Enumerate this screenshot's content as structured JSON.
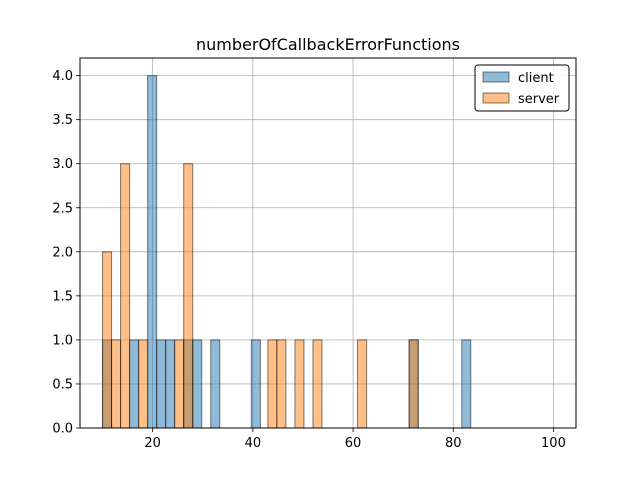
{
  "chart_data": {
    "type": "bar",
    "title": "numberOfCallbackErrorFunctions",
    "xlabel": "",
    "ylabel": "",
    "xlim": [
      5.5,
      104.5
    ],
    "ylim": [
      0,
      4.2
    ],
    "xticks": [
      20,
      40,
      60,
      80,
      100
    ],
    "yticks": [
      0.0,
      0.5,
      1.0,
      1.5,
      2.0,
      2.5,
      3.0,
      3.5,
      4.0
    ],
    "xtick_labels": [
      "20",
      "40",
      "60",
      "80",
      "100"
    ],
    "ytick_labels": [
      "0.0",
      "0.5",
      "1.0",
      "1.5",
      "2.0",
      "2.5",
      "3.0",
      "3.5",
      "4.0"
    ],
    "bin_width": 1.8,
    "grid": true,
    "legend_position": "top-right",
    "series": [
      {
        "name": "client",
        "color": "#1f77b4",
        "alpha": 0.5,
        "bins": [
          {
            "x": 10,
            "value": 1
          },
          {
            "x": 15.4,
            "value": 1
          },
          {
            "x": 19.0,
            "value": 4
          },
          {
            "x": 20.8,
            "value": 1
          },
          {
            "x": 22.6,
            "value": 1
          },
          {
            "x": 26.2,
            "value": 1
          },
          {
            "x": 28.0,
            "value": 1
          },
          {
            "x": 31.6,
            "value": 1
          },
          {
            "x": 39.7,
            "value": 1
          },
          {
            "x": 71.2,
            "value": 1
          },
          {
            "x": 81.7,
            "value": 1
          }
        ]
      },
      {
        "name": "server",
        "color": "#ff7f0e",
        "alpha": 0.5,
        "bins": [
          {
            "x": 10,
            "value": 2
          },
          {
            "x": 11.8,
            "value": 1
          },
          {
            "x": 13.6,
            "value": 3
          },
          {
            "x": 17.2,
            "value": 1
          },
          {
            "x": 24.4,
            "value": 1
          },
          {
            "x": 26.2,
            "value": 3
          },
          {
            "x": 43.0,
            "value": 1
          },
          {
            "x": 44.8,
            "value": 1
          },
          {
            "x": 48.4,
            "value": 1
          },
          {
            "x": 52.0,
            "value": 1
          },
          {
            "x": 60.9,
            "value": 1
          },
          {
            "x": 71.2,
            "value": 1
          }
        ]
      }
    ]
  }
}
